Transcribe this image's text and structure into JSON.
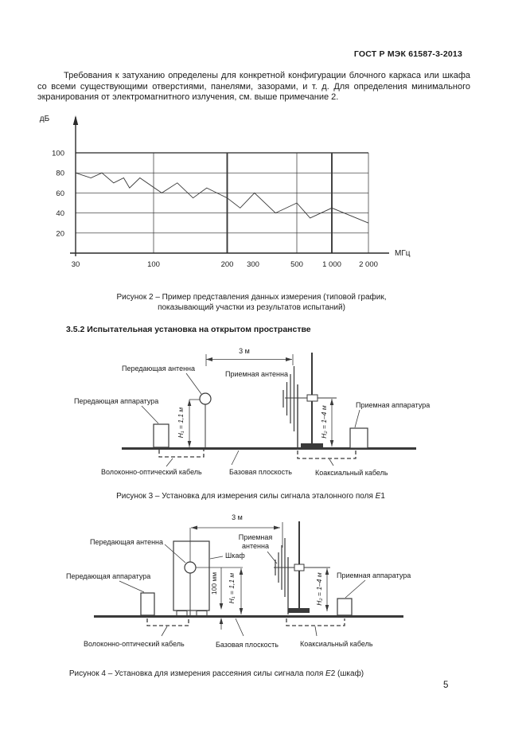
{
  "header": {
    "title": "ГОСТ Р МЭК 61587-3-2013"
  },
  "intro": {
    "text": "Требования к затуханию определены для конкретной конфигурации блочного каркаса или шкафа со всеми существующими отверстиями, панелями, зазорами, и т. д. Для определения минимального экранирования от электромагнитного излучения, см. выше примечание 2."
  },
  "chart_data": {
    "type": "line",
    "title": "",
    "xlabel": "МГц",
    "ylabel": "дБ",
    "ylim": [
      0,
      100
    ],
    "y_ticks": [
      20,
      40,
      60,
      80,
      100
    ],
    "x_ticks": [
      30,
      100,
      200,
      300,
      500,
      1000,
      2000
    ],
    "x_tick_labels": [
      "30",
      "100",
      "200",
      "300",
      "500",
      "1 000",
      "2 000"
    ],
    "x_gridlines": [
      100,
      200,
      500,
      1000,
      2000
    ],
    "emphasized_x_gridlines": [
      200,
      1000
    ],
    "x_scale": "log-piecewise",
    "grid": true,
    "legend_position": "none",
    "series": [
      {
        "x": [
          30,
          38,
          45,
          54,
          63,
          69,
          81,
          108,
          125,
          145,
          165,
          200,
          245,
          305,
          390,
          500,
          650,
          1000,
          2000
        ],
        "y": [
          80,
          75,
          80,
          70,
          75,
          65,
          75,
          60,
          70,
          55,
          65,
          55,
          45,
          60,
          40,
          50,
          35,
          45,
          30
        ]
      }
    ]
  },
  "figure2": {
    "caption_line1": "Рисунок 2 – Пример представления данных измерения (типовой график,",
    "caption_line2": "показывающий участки из результатов испытаний)"
  },
  "section": {
    "heading": "3.5.2 Испытательная установка на открытом пространстве"
  },
  "figure3": {
    "labels": {
      "distance": "3 м",
      "tx_antenna": "Передающая антенна",
      "rx_antenna": "Приемная антенна",
      "tx_apparatus": "Передающая аппаратура",
      "rx_apparatus": "Приемная аппаратура",
      "h1": "H₁ = 1,1 м",
      "h2": "H₂ = 1–4 м",
      "fiber_cable": "Волоконно-оптический кабель",
      "base_plane": "Базовая плоскость",
      "coax_cable": "Коаксиальный кабель"
    },
    "caption": {
      "pre": "Рисунок 3 – Установка для измерения силы сигнала эталонного поля ",
      "em": "E",
      "post": "1"
    }
  },
  "figure4": {
    "labels": {
      "distance": "3 м",
      "tx_antenna": "Передающая антенна",
      "rx_antenna_line1": "Приемная",
      "rx_antenna_line2": "антенна",
      "cabinet": "Шкаф",
      "tx_apparatus": "Передающая аппаратура",
      "rx_apparatus": "Приемная аппаратура",
      "standoff": "100 мм",
      "h1": "H₁ = 1,1 м",
      "h2": "H₂ = 1–4 м",
      "fiber_cable": "Волоконно-оптический кабель",
      "base_plane": "Базовая плоскость",
      "coax_cable": "Коаксиальный кабель"
    },
    "caption": {
      "pre": "Рисунок 4 – Установка для измерения рассеяния силы сигнала поля ",
      "em": "E",
      "post": "2 (шкаф)"
    }
  },
  "page": {
    "number": "5"
  }
}
